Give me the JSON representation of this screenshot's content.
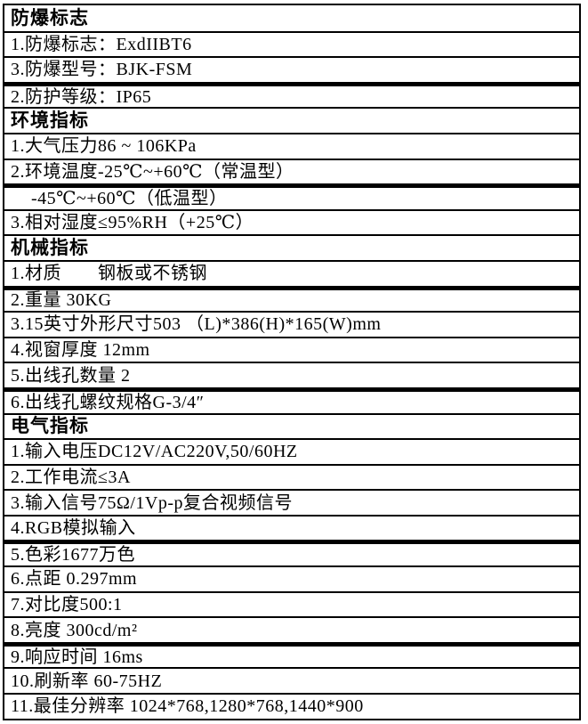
{
  "page": {
    "background_color": "#ffffff",
    "text_color": "#000000",
    "border_color": "#000000"
  },
  "table": {
    "rows": [
      {
        "text": "防爆标志",
        "type": "header",
        "thick_top": false,
        "indent": false
      },
      {
        "text": "1.防爆标志：ExdIIBT6",
        "type": "item",
        "thick_top": false,
        "indent": false
      },
      {
        "text": "3.防爆型号：BJK-FSM",
        "type": "item",
        "thick_top": false,
        "indent": false
      },
      {
        "text": "2.防护等级：IP65",
        "type": "item",
        "thick_top": true,
        "indent": false
      },
      {
        "text": "环境指标",
        "type": "header",
        "thick_top": false,
        "indent": false
      },
      {
        "text": "1.大气压力86 ~ 106KPa",
        "type": "item",
        "thick_top": false,
        "indent": false
      },
      {
        "text": "2.环境温度-25℃~+60℃（常温型）",
        "type": "item",
        "thick_top": false,
        "indent": false
      },
      {
        "text": "-45℃~+60℃（低温型）",
        "type": "item",
        "thick_top": true,
        "indent": true
      },
      {
        "text": "3.相对湿度≤95%RH（+25℃）",
        "type": "item",
        "thick_top": false,
        "indent": false
      },
      {
        "text": "机械指标",
        "type": "header",
        "thick_top": false,
        "indent": false
      },
      {
        "text": "1.材质　　钢板或不锈钢",
        "type": "item",
        "thick_top": false,
        "indent": false
      },
      {
        "text": "2.重量 30KG",
        "type": "item",
        "thick_top": true,
        "indent": false
      },
      {
        "text": "3.15英寸外形尺寸503 （L)*386(H)*165(W)mm",
        "type": "item",
        "thick_top": false,
        "indent": false
      },
      {
        "text": "4.视窗厚度 12mm",
        "type": "item",
        "thick_top": false,
        "indent": false
      },
      {
        "text": "5.出线孔数量 2",
        "type": "item",
        "thick_top": false,
        "indent": false
      },
      {
        "text": "6.出线孔螺纹规格G-3/4″",
        "type": "item",
        "thick_top": true,
        "indent": false
      },
      {
        "text": "电气指标",
        "type": "header",
        "thick_top": false,
        "indent": false
      },
      {
        "text": "1.输入电压DC12V/AC220V,50/60HZ",
        "type": "item",
        "thick_top": false,
        "indent": false
      },
      {
        "text": "2.工作电流≤3A",
        "type": "item",
        "thick_top": false,
        "indent": false
      },
      {
        "text": "3.输入信号75Ω/1Vp-p复合视频信号",
        "type": "item",
        "thick_top": false,
        "indent": false
      },
      {
        "text": "4.RGB模拟输入",
        "type": "item",
        "thick_top": false,
        "indent": false
      },
      {
        "text": "5.色彩1677万色",
        "type": "item",
        "thick_top": true,
        "indent": false
      },
      {
        "text": "6.点距 0.297mm",
        "type": "item",
        "thick_top": false,
        "indent": false
      },
      {
        "text": "7.对比度500:1",
        "type": "item",
        "thick_top": false,
        "indent": false
      },
      {
        "text": "8.亮度 300cd/m²",
        "type": "item",
        "thick_top": false,
        "indent": false
      },
      {
        "text": "9.响应时间 16ms",
        "type": "item",
        "thick_top": true,
        "indent": false
      },
      {
        "text": "10.刷新率 60-75HZ",
        "type": "item",
        "thick_top": false,
        "indent": false
      },
      {
        "text": "11.最佳分辨率 1024*768,1280*768,1440*900",
        "type": "item",
        "thick_top": false,
        "indent": false
      }
    ]
  }
}
